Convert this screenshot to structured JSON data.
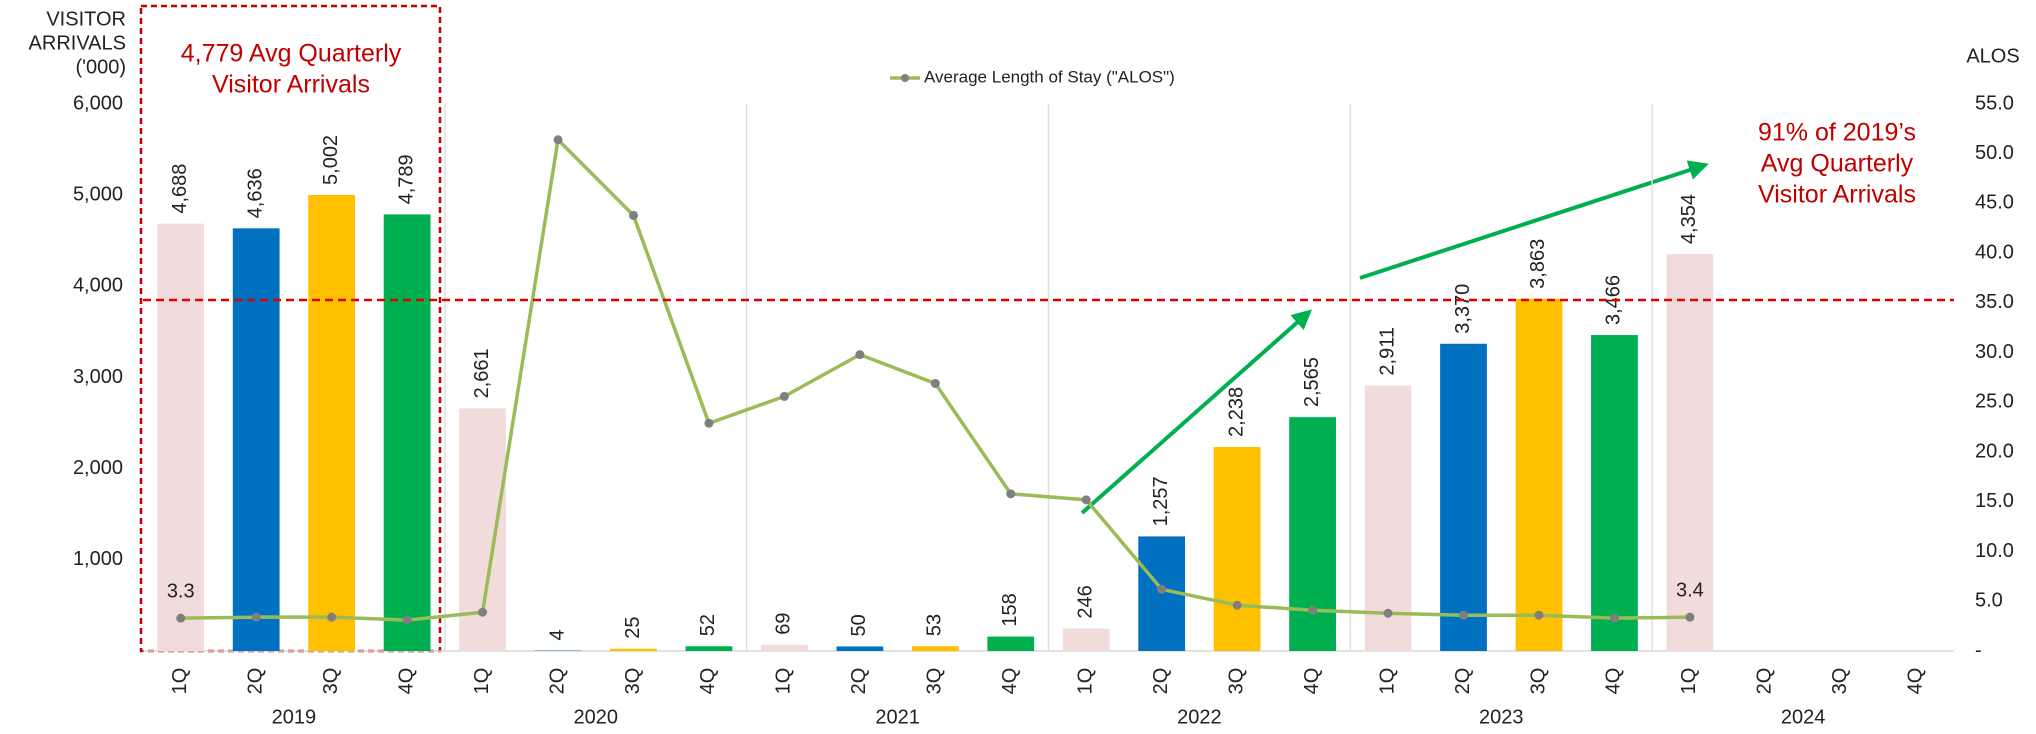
{
  "chart_data": {
    "type": "bar",
    "y_label_lines": [
      "VISITOR",
      "ARRIVALS",
      "('000)"
    ],
    "y2_label": "ALOS",
    "categories": [
      "1Q",
      "2Q",
      "3Q",
      "4Q",
      "1Q",
      "2Q",
      "3Q",
      "4Q",
      "1Q",
      "2Q",
      "3Q",
      "4Q",
      "1Q",
      "2Q",
      "3Q",
      "4Q",
      "1Q",
      "2Q",
      "3Q",
      "4Q",
      "1Q",
      "2Q",
      "3Q",
      "4Q"
    ],
    "years": [
      "2019",
      "2020",
      "2021",
      "2022",
      "2023",
      "2024"
    ],
    "series": [
      {
        "type": "bar",
        "values": [
          4688,
          4636,
          5002,
          4789,
          2661,
          4,
          25,
          52,
          69,
          50,
          53,
          158,
          246,
          1257,
          2238,
          2565,
          2911,
          3370,
          3863,
          3466,
          4354,
          null,
          null,
          null
        ],
        "value_labels": [
          "4,688",
          "4,636",
          "5,002",
          "4,789",
          "2,661",
          "4",
          "25",
          "52",
          "69",
          "50",
          "53",
          "158",
          "246",
          "1,257",
          "2,238",
          "2,565",
          "2,911",
          "3,370",
          "3,863",
          "3,466",
          "4,354",
          null,
          null,
          null
        ],
        "colors": [
          "#f2dcdb",
          "#0070c0",
          "#ffc000",
          "#00b050",
          "#f2dcdb",
          "#0070c0",
          "#ffc000",
          "#00b050",
          "#f2dcdb",
          "#0070c0",
          "#ffc000",
          "#00b050",
          "#f2dcdb",
          "#0070c0",
          "#ffc000",
          "#00b050",
          "#f2dcdb",
          "#0070c0",
          "#ffc000",
          "#00b050",
          "#f2dcdb",
          "#0070c0",
          "#ffc000",
          "#00b050"
        ]
      },
      {
        "type": "line",
        "name": "Average Length of Stay (\"ALOS\")",
        "axis": "y2",
        "color": "#9bbb59",
        "marker_color": "#7f7f7f",
        "values": [
          3.3,
          3.4,
          3.4,
          3.1,
          3.9,
          51.4,
          43.8,
          22.9,
          25.6,
          29.8,
          26.9,
          15.8,
          15.2,
          6.2,
          4.6,
          4.1,
          3.8,
          3.6,
          3.6,
          3.3,
          3.4,
          null,
          null,
          null
        ],
        "value_labels": [
          "3.3",
          null,
          null,
          null,
          null,
          null,
          null,
          null,
          null,
          null,
          null,
          null,
          null,
          null,
          null,
          null,
          null,
          null,
          null,
          null,
          "3.4",
          null,
          null,
          null
        ]
      }
    ],
    "ylim": [
      0,
      6000
    ],
    "yticks": [
      {
        "value": 1000,
        "label": "1,000"
      },
      {
        "value": 2000,
        "label": "2,000"
      },
      {
        "value": 3000,
        "label": "3,000"
      },
      {
        "value": 4000,
        "label": "4,000"
      },
      {
        "value": 5000,
        "label": "5,000"
      },
      {
        "value": 6000,
        "label": "6,000"
      }
    ],
    "y2lim": [
      0,
      55
    ],
    "y2ticks": [
      {
        "value": 0,
        "label": "-"
      },
      {
        "value": 5,
        "label": "5.0"
      },
      {
        "value": 10,
        "label": "10.0"
      },
      {
        "value": 15,
        "label": "15.0"
      },
      {
        "value": 20,
        "label": "20.0"
      },
      {
        "value": 25,
        "label": "25.0"
      },
      {
        "value": 30,
        "label": "30.0"
      },
      {
        "value": 35,
        "label": "35.0"
      },
      {
        "value": 40,
        "label": "40.0"
      },
      {
        "value": 45,
        "label": "45.0"
      },
      {
        "value": 50,
        "label": "50.0"
      },
      {
        "value": 55,
        "label": "55.0"
      }
    ],
    "reference_line": 3850,
    "annotations": [
      {
        "lines": [
          "4,779 Avg Quarterly",
          "Visitor Arrivals"
        ]
      },
      {
        "lines": [
          "91% of 2019’s",
          "Avg Quarterly",
          "Visitor Arrivals"
        ]
      }
    ]
  }
}
